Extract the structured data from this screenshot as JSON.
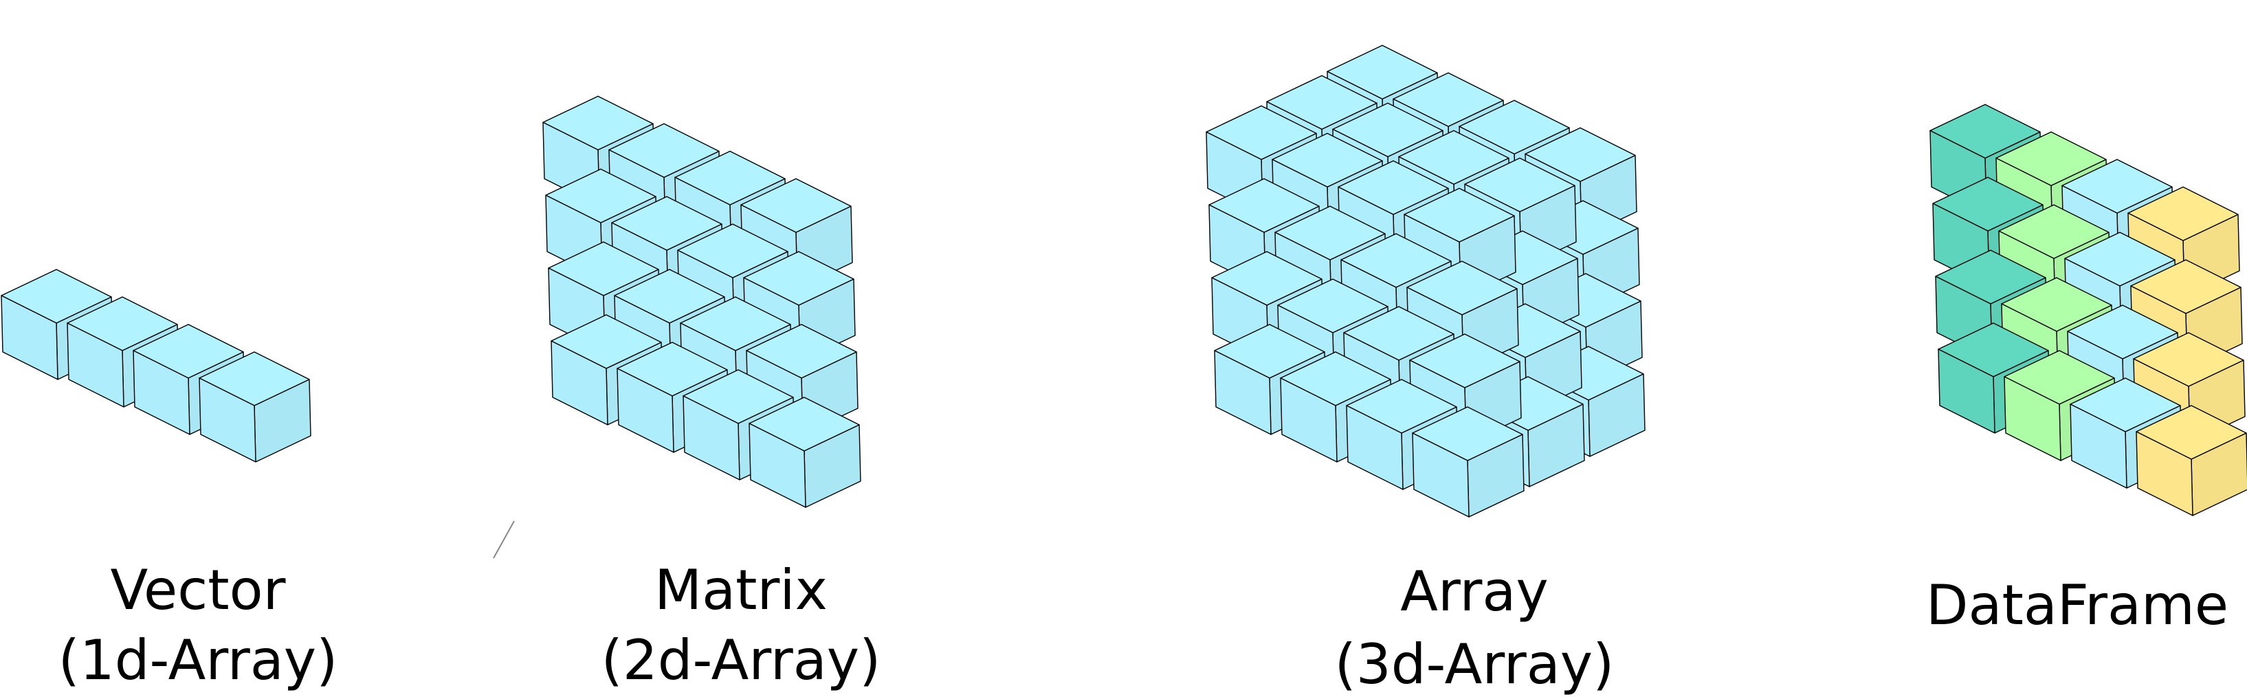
{
  "panels": [
    {
      "id": "vector",
      "caption_line1": "Vector",
      "caption_line2": "(1d-Array)"
    },
    {
      "id": "matrix",
      "caption_line1": "Matrix",
      "caption_line2": "(2d-Array)"
    },
    {
      "id": "array",
      "caption_line1": "Array",
      "caption_line2": "(3d-Array)"
    },
    {
      "id": "dataframe",
      "caption_line1": "DataFrame"
    }
  ],
  "colors": {
    "array_cell": "#aeeefc",
    "dataframe_columns": [
      "#5fd4bc",
      "#adfca6",
      "#aeeefc",
      "#fce58a"
    ],
    "outline": "#000000"
  }
}
